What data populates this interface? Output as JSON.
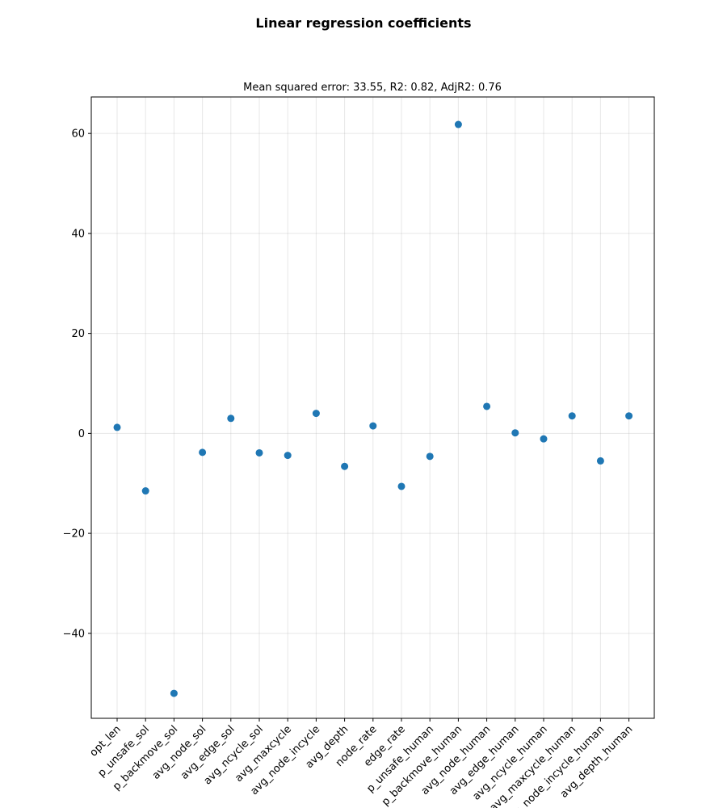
{
  "chart_data": {
    "type": "scatter",
    "title": "Linear regression coefficients",
    "subtitle": "Mean squared error: 33.55, R2: 0.82, AdjR2: 0.76",
    "xlabel": "",
    "ylabel": "",
    "categories": [
      "opt_len",
      "p_unsafe_sol",
      "p_backmove_sol",
      "avg_node_sol",
      "avg_edge_sol",
      "avg_ncycle_sol",
      "avg_maxcycle",
      "avg_node_incycle",
      "avg_depth",
      "node_rate",
      "edge_rate",
      "p_unsafe_human",
      "p_backmove_human",
      "avg_node_human",
      "avg_edge_human",
      "avg_ncycle_human",
      "avg_maxcycle_human",
      "avg_node_incycle_human",
      "avg_depth_human"
    ],
    "values": [
      1.2,
      -11.5,
      -52.0,
      -3.8,
      3.0,
      -3.9,
      -4.4,
      4.0,
      -6.6,
      1.5,
      -10.6,
      -4.6,
      61.8,
      5.4,
      0.1,
      -1.1,
      3.5,
      -5.5,
      3.5
    ],
    "ylim": [
      -57.0,
      67.3
    ],
    "yticks": [
      -40,
      -20,
      0,
      20,
      40,
      60
    ],
    "ytick_labels": [
      "−40",
      "−20",
      "0",
      "20",
      "40",
      "60"
    ],
    "grid": true,
    "marker_color": "#1f77b4"
  }
}
